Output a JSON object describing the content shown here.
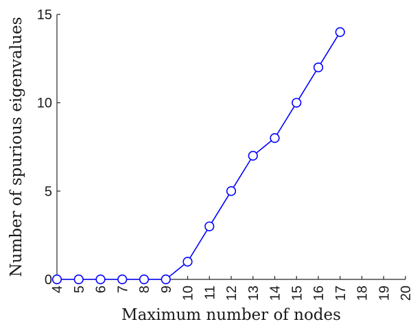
{
  "chart_data": {
    "type": "line",
    "title": "",
    "xlabel": "Maximum number of nodes",
    "ylabel": "Number of spurious eigenvalues",
    "xlim": [
      4,
      20
    ],
    "ylim": [
      0,
      15
    ],
    "xticks": [
      "4",
      "5",
      "6",
      "7",
      "8",
      "9",
      "10",
      "11",
      "12",
      "13",
      "14",
      "15",
      "16",
      "17",
      "18",
      "19",
      "20"
    ],
    "yticks": [
      "0",
      "5",
      "10",
      "15"
    ],
    "grid": false,
    "legend": "none",
    "series": [
      {
        "color": "#0000ff",
        "marker": "circle",
        "x": [
          4,
          5,
          6,
          7,
          8,
          9,
          10,
          11,
          12,
          13,
          14,
          15,
          16,
          17
        ],
        "y": [
          0,
          0,
          0,
          0,
          0,
          0,
          1,
          3,
          5,
          7,
          8,
          10,
          12,
          14
        ]
      }
    ]
  }
}
